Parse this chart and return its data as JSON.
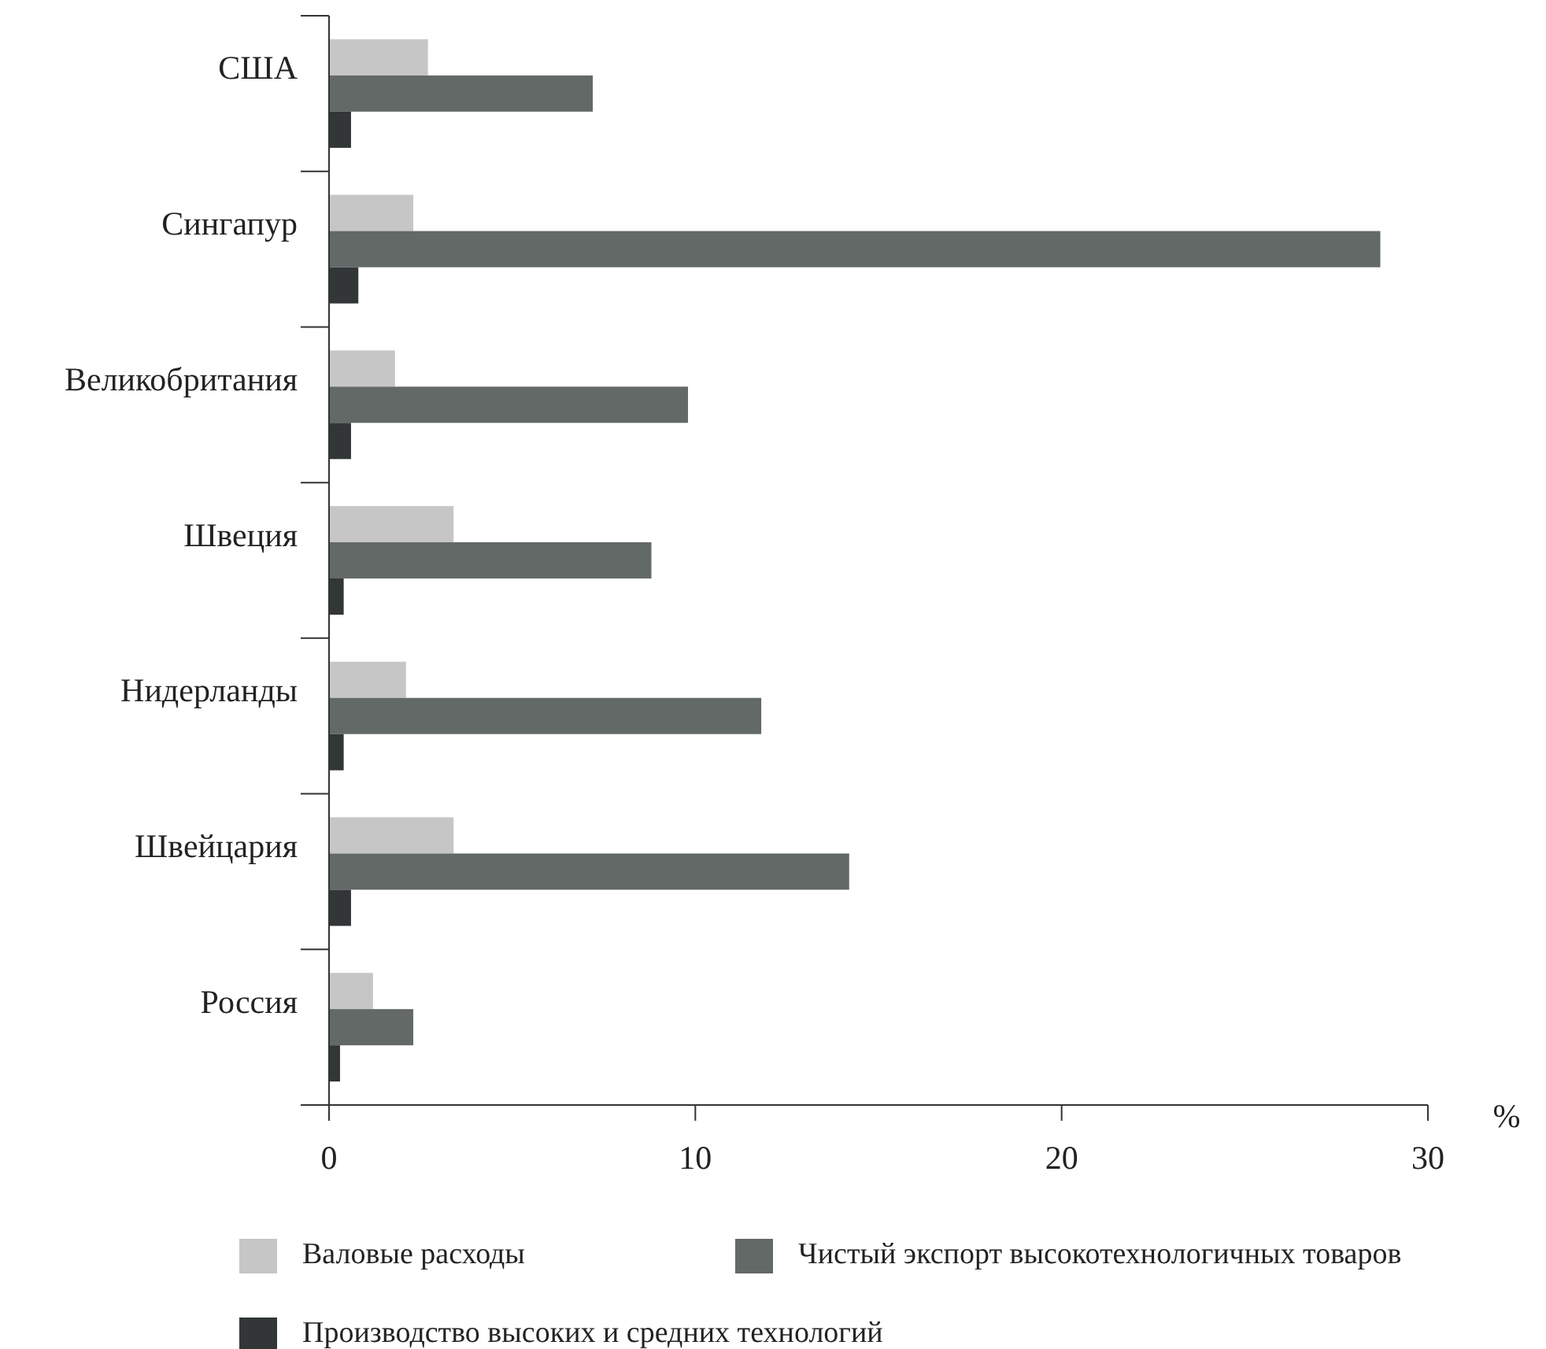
{
  "chart_data": {
    "type": "bar",
    "orientation": "horizontal",
    "xlabel": "%",
    "categories": [
      "США",
      "Сингапур",
      "Великобритания",
      "Швеция",
      "Нидерланды",
      "Швейцария",
      "Россия"
    ],
    "series": [
      {
        "name": "Валовые расходы",
        "color": "#c6c6c6",
        "values": [
          2.7,
          2.3,
          1.8,
          3.4,
          2.1,
          3.4,
          1.2
        ]
      },
      {
        "name": "Чистый экспорт высокотехнологичных товаров",
        "color": "#636967",
        "values": [
          7.2,
          28.7,
          9.8,
          8.8,
          11.8,
          14.2,
          2.3
        ]
      },
      {
        "name": "Производство высоких и средних технологий",
        "color": "#323637",
        "values": [
          0.6,
          0.8,
          0.6,
          0.4,
          0.4,
          0.6,
          0.3
        ]
      }
    ],
    "xlim": [
      0,
      30
    ],
    "xticks": [
      0,
      10,
      20,
      30
    ],
    "grid": false,
    "legend": "bottom"
  }
}
